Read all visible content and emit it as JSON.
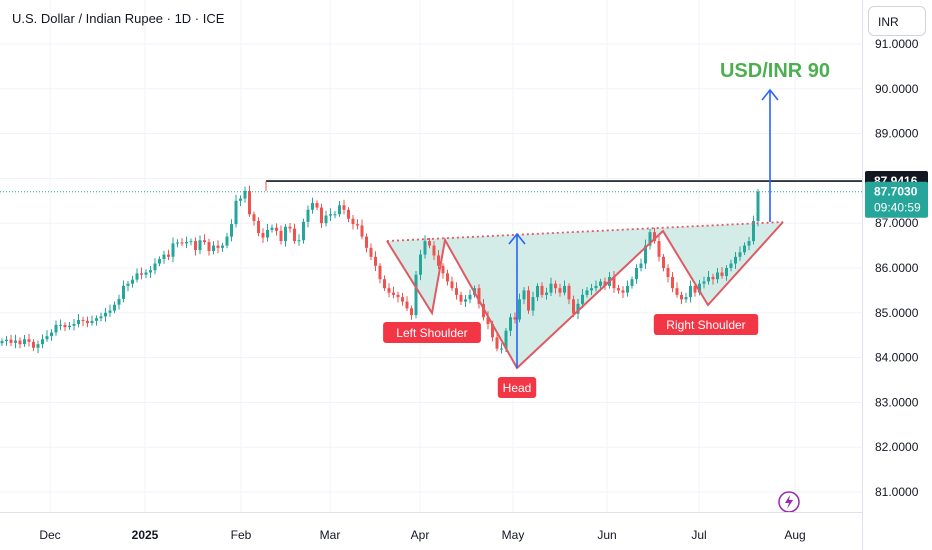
{
  "header": {
    "title": "U.S. Dollar / Indian Rupee · 1D · ICE",
    "currency": "INR"
  },
  "chart_data": {
    "type": "candlestick",
    "title": "U.S. Dollar / Indian Rupee · 1D · ICE",
    "y_axis": {
      "side": "right",
      "unit": "INR",
      "range": [
        80.8,
        91.8
      ],
      "ticks": [
        "91.0000",
        "90.0000",
        "89.0000",
        "87.0000",
        "86.0000",
        "85.0000",
        "84.0000",
        "83.0000",
        "82.0000",
        "81.0000"
      ]
    },
    "x_axis": {
      "ticks": [
        "Dec",
        "2025",
        "Feb",
        "Mar",
        "Apr",
        "May",
        "Jun",
        "Jul",
        "Aug"
      ]
    },
    "series_close": [
      84.37,
      84.4,
      84.33,
      84.38,
      84.3,
      84.41,
      84.35,
      84.22,
      84.3,
      84.41,
      84.48,
      84.56,
      84.73,
      84.73,
      84.68,
      84.71,
      84.75,
      84.84,
      84.82,
      84.77,
      84.82,
      84.88,
      84.92,
      85.0,
      85.05,
      85.18,
      85.31,
      85.6,
      85.65,
      85.74,
      85.88,
      85.85,
      85.9,
      85.95,
      86.1,
      86.2,
      86.3,
      86.25,
      86.55,
      86.57,
      86.55,
      86.58,
      86.6,
      86.4,
      86.62,
      86.58,
      86.38,
      86.5,
      86.45,
      86.5,
      86.7,
      86.98,
      87.5,
      87.55,
      87.72,
      87.2,
      87.05,
      86.78,
      86.68,
      86.85,
      86.9,
      86.83,
      86.6,
      86.92,
      86.88,
      86.6,
      86.62,
      87.03,
      87.3,
      87.45,
      87.35,
      87.0,
      87.17,
      87.2,
      87.2,
      87.4,
      87.3,
      87.1,
      86.98,
      86.95,
      86.7,
      86.45,
      86.25,
      86.05,
      85.75,
      85.55,
      85.45,
      85.4,
      85.35,
      85.25,
      85.1,
      84.95,
      85.85,
      86.3,
      86.6,
      86.5,
      86.28,
      86.05,
      85.88,
      85.7,
      85.55,
      85.4,
      85.25,
      85.3,
      85.4,
      85.55,
      85.2,
      84.9,
      84.75,
      84.45,
      84.2,
      84.2,
      84.6,
      84.9,
      84.85,
      85.3,
      85.5,
      85.05,
      85.35,
      85.6,
      85.4,
      85.45,
      85.65,
      85.55,
      85.45,
      85.6,
      85.3,
      84.98,
      85.2,
      85.4,
      85.5,
      85.55,
      85.6,
      85.7,
      85.6,
      85.8,
      85.55,
      85.5,
      85.45,
      85.6,
      85.75,
      86.0,
      86.1,
      86.5,
      86.8,
      86.6,
      86.25,
      86.0,
      85.8,
      85.55,
      85.4,
      85.3,
      85.35,
      85.6,
      85.45,
      85.65,
      85.7,
      85.8,
      85.75,
      85.9,
      85.82,
      86.0,
      86.1,
      86.25,
      86.35,
      86.5,
      86.6,
      87.05,
      87.703
    ],
    "current_price": 87.703,
    "annotations": {
      "pattern_labels": [
        "Left Shoulder",
        "Head",
        "Right Shoulder"
      ],
      "target_text": "USD/INR 90",
      "resistance_price": "87.9416",
      "last_price": "87.7030",
      "countdown": "09:40:59"
    }
  },
  "colors": {
    "up": "#26a69a",
    "down": "#ef5350",
    "pattern": "#e05a63",
    "neckline": "#e05a63",
    "fill": "#cde9e4",
    "arrow": "#2962ff",
    "target": "#4caf50",
    "resistance": "#131722"
  }
}
